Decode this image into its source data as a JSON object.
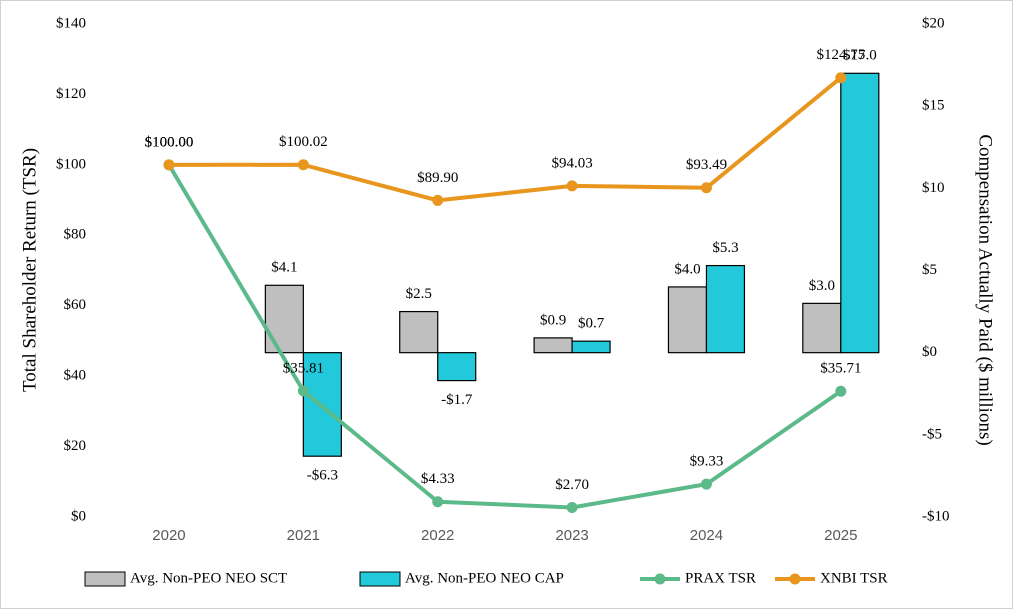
{
  "chart_data": {
    "type": "combo",
    "categories": [
      "2020",
      "2021",
      "2022",
      "2023",
      "2024",
      "2025"
    ],
    "ylabel": "Total Shareholder Return (TSR)",
    "y2label": "Compensation Actually Paid ($ millions)",
    "ylim": [
      0,
      140
    ],
    "yticks": [
      {
        "value": 0,
        "label": "$0"
      },
      {
        "value": 20,
        "label": "$20"
      },
      {
        "value": 40,
        "label": "$40"
      },
      {
        "value": 60,
        "label": "$60"
      },
      {
        "value": 80,
        "label": "$80"
      },
      {
        "value": 100,
        "label": "$100"
      },
      {
        "value": 120,
        "label": "$120"
      },
      {
        "value": 140,
        "label": "$140"
      }
    ],
    "y2lim": [
      -10,
      20
    ],
    "y2ticks": [
      {
        "value": -10,
        "label": "-$10"
      },
      {
        "value": -5,
        "label": "-$5"
      },
      {
        "value": 0,
        "label": "$0"
      },
      {
        "value": 5,
        "label": "$5"
      },
      {
        "value": 10,
        "label": "$10"
      },
      {
        "value": 15,
        "label": "$15"
      },
      {
        "value": 20,
        "label": "$20"
      }
    ],
    "grid": false,
    "legend": "bottom",
    "series": [
      {
        "name": "Avg. Non-PEO NEO SCT",
        "type": "bar",
        "axis": "y2",
        "color": "#bfbfbf",
        "values": [
          null,
          4.1,
          2.5,
          0.9,
          4.0,
          3.0
        ],
        "value_labels": [
          null,
          "$4.1",
          "$2.5",
          "$0.9",
          "$4.0",
          "$3.0"
        ]
      },
      {
        "name": "Avg. Non-PEO NEO CAP",
        "type": "bar",
        "axis": "y2",
        "color": "#22c9da",
        "values": [
          null,
          -6.3,
          -1.7,
          0.7,
          5.3,
          17.0
        ],
        "value_labels": [
          null,
          "-$6.3",
          "-$1.7",
          "$0.7",
          "$5.3",
          "$17.0"
        ]
      },
      {
        "name": "PRAX TSR",
        "type": "line",
        "color": "#5cb98a",
        "values": [
          100,
          35.81,
          4.33,
          2.7,
          9.33,
          35.71
        ],
        "value_labels": [
          "$100.00",
          "$35.81",
          "$4.33",
          "$2.70",
          "$9.33",
          "$35.71"
        ]
      },
      {
        "name": "XNBI TSR",
        "type": "line",
        "color": "#e8961e",
        "values": [
          100,
          100.02,
          89.9,
          94.03,
          93.49,
          124.75
        ],
        "value_labels": [
          "$100.00",
          "$100.02",
          "$89.90",
          "$94.03",
          "$93.49",
          "$124.75"
        ]
      }
    ]
  }
}
